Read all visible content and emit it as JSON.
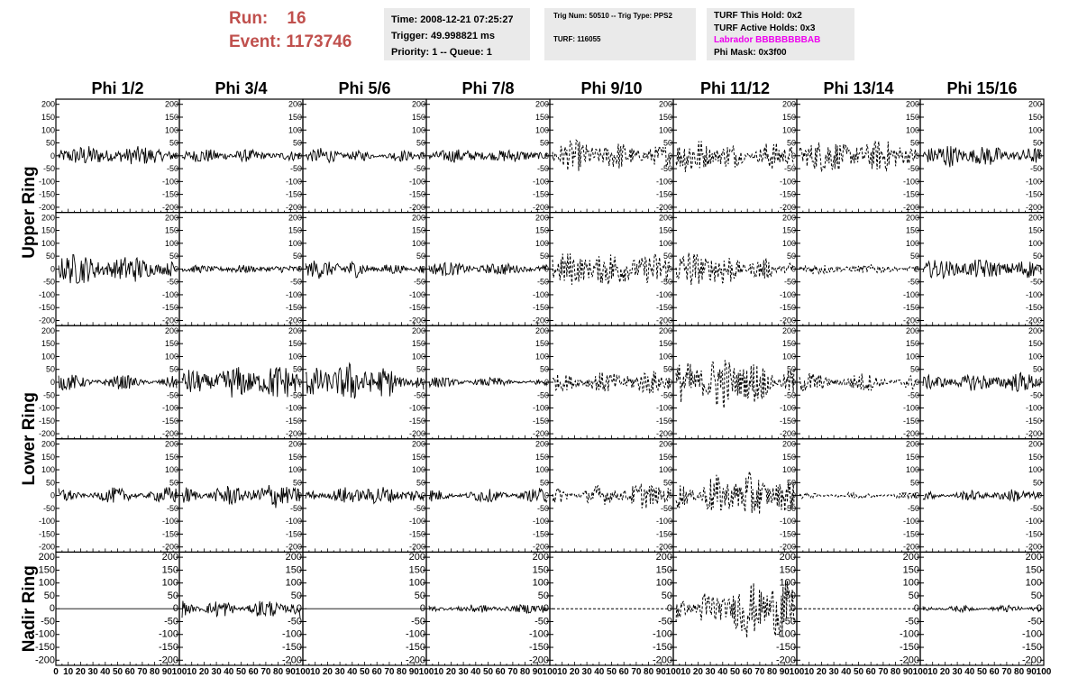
{
  "run_info": {
    "run_label": "Run:",
    "run_value": "16",
    "event_label": "Event:",
    "event_value": "1173746",
    "color": "#c0504d"
  },
  "time_box": {
    "time": "Time: 2008-12-21 07:25:27",
    "trigger": "Trigger: 49.998821 ms",
    "priority": "Priority: 1 -- Queue: 1"
  },
  "trig_box": {
    "trig": "Trig Num: 50510 -- Trig Type: PPS2",
    "turf": "TURF: 116055"
  },
  "turf_box": {
    "hold": "TURF This Hold: 0x2",
    "active": "TURF Active Holds: 0x3",
    "labrador": "Labrador BBBBBBBBAB",
    "phi_mask": "Phi Mask: 0x3f00",
    "labrador_color": "#ee00ee"
  },
  "chart_data": {
    "type": "line",
    "columns": [
      "Phi 1/2",
      "Phi 3/4",
      "Phi 5/6",
      "Phi 7/8",
      "Phi 9/10",
      "Phi 11/12",
      "Phi 13/14",
      "Phi 15/16"
    ],
    "rows": [
      "Upper Ring",
      "Lower Ring",
      "Nadir Ring"
    ],
    "xlim": [
      0,
      100
    ],
    "ylim": [
      -220,
      220
    ],
    "yticks": [
      -200,
      -150,
      -100,
      -50,
      0,
      50,
      100,
      150,
      200
    ],
    "xticks": [
      0,
      10,
      20,
      30,
      40,
      50,
      60,
      70,
      80,
      90,
      100
    ],
    "panel_rows": 5,
    "amplitudes": [
      [
        25,
        18,
        22,
        17,
        40,
        55,
        42,
        30
      ],
      [
        45,
        10,
        25,
        20,
        45,
        50,
        15,
        25
      ],
      [
        30,
        45,
        50,
        20,
        30,
        70,
        40,
        25
      ],
      [
        35,
        40,
        25,
        30,
        40,
        60,
        15,
        20
      ],
      [
        0,
        40,
        0,
        15,
        0,
        80,
        0,
        15
      ]
    ],
    "dashed_columns": [
      4,
      5,
      6
    ]
  }
}
